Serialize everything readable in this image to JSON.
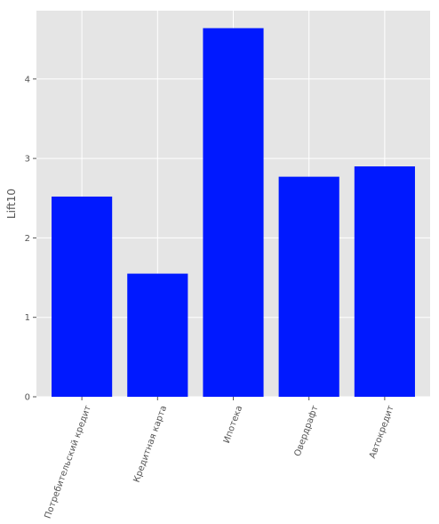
{
  "chart_data": {
    "type": "bar",
    "categories": [
      "Потребительский кредит",
      "Кредитная карта",
      "Ипотека",
      "Овердрафт",
      "Автокредит"
    ],
    "values": [
      2.52,
      1.55,
      4.64,
      2.77,
      2.9
    ],
    "title": "",
    "xlabel": "",
    "ylabel": "Lift10",
    "ylim": [
      0,
      4.86
    ],
    "yticks": [
      0,
      1,
      2,
      3,
      4
    ],
    "grid": true,
    "style": "ggplot",
    "bar_color": "#0019ff",
    "background_color": "#e5e5e5",
    "grid_color": "#ffffff"
  }
}
